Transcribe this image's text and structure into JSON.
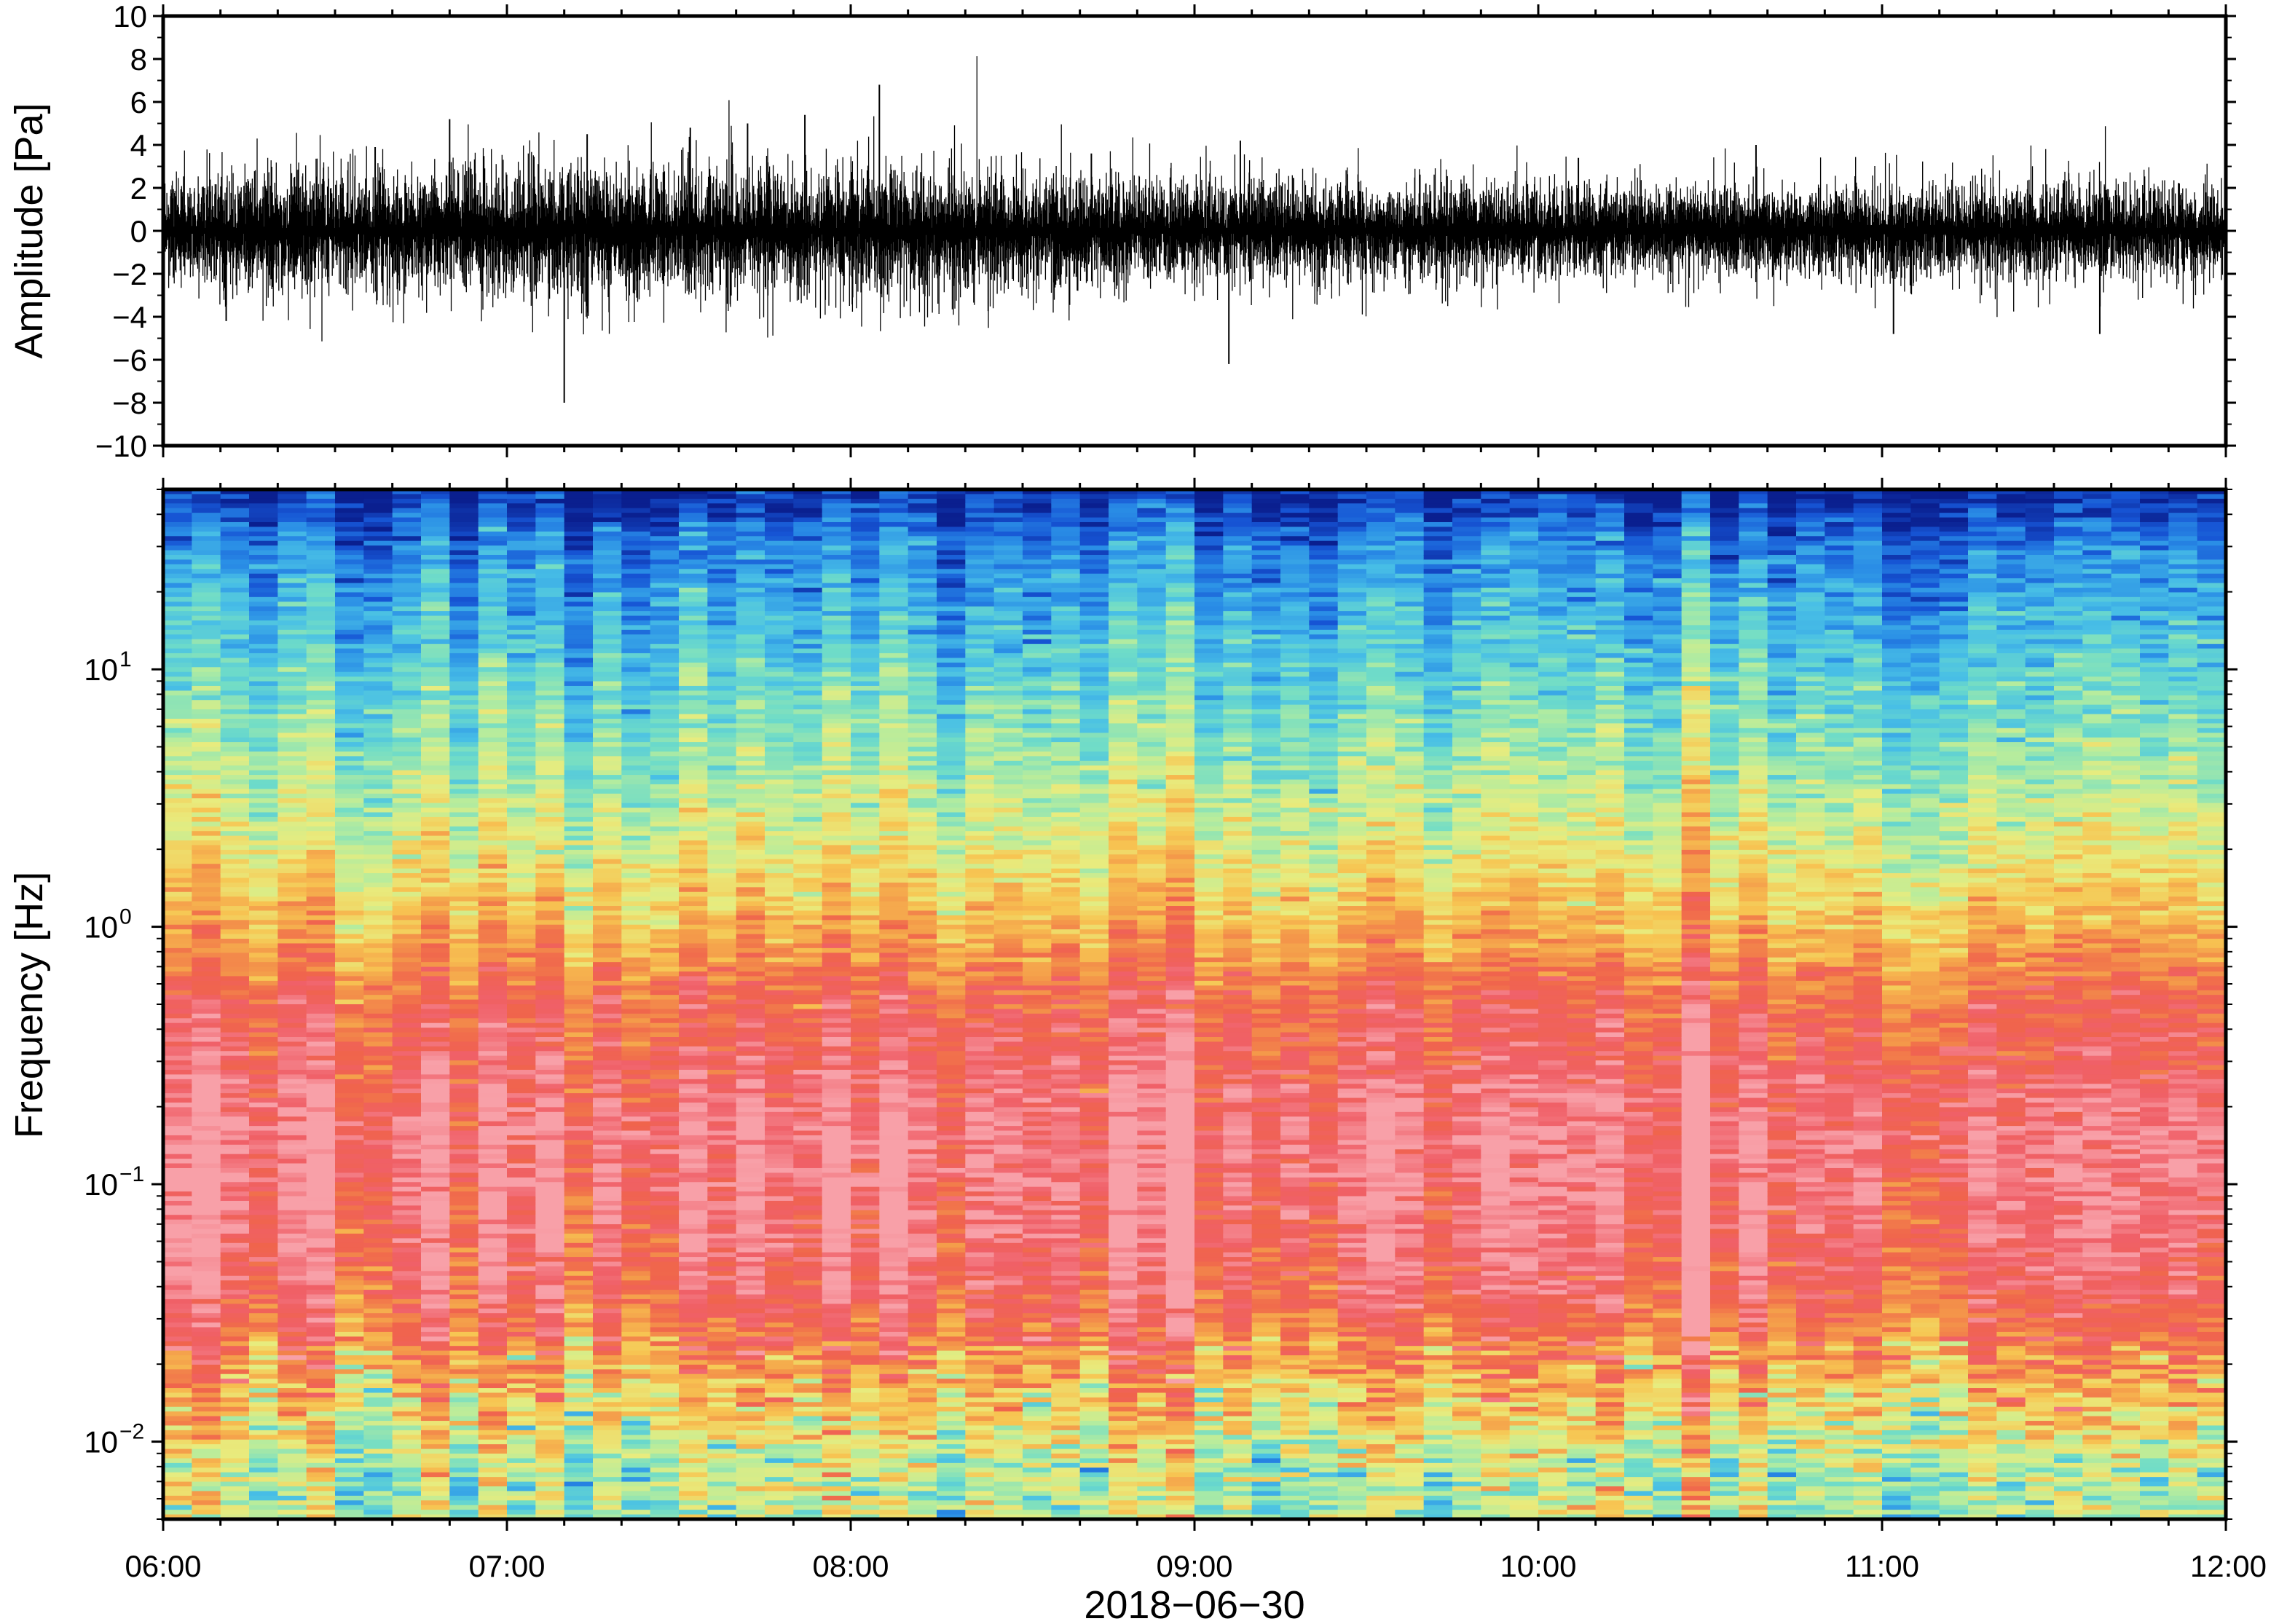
{
  "chart_data": [
    {
      "type": "line",
      "panel": "waveform",
      "title": "",
      "ylabel": "Amplitude [Pa]",
      "ylim": [
        -10,
        10
      ],
      "yticks": [
        10,
        8,
        6,
        4,
        2,
        0,
        -2,
        -4,
        -6,
        -8,
        -10
      ],
      "ytick_labels": [
        "10",
        "8",
        "6",
        "4",
        "2",
        "0",
        "−2",
        "−4",
        "−6",
        "−8",
        "−10"
      ],
      "time_range": [
        "06:00",
        "12:00"
      ],
      "series": [
        {
          "color": "#000000",
          "envelope_hours": [
            6.0,
            6.5,
            7.0,
            7.5,
            8.0,
            8.5,
            9.0,
            9.5,
            10.0,
            10.5,
            11.0,
            11.5,
            12.0
          ],
          "envelope_amplitude_pa": [
            3.0,
            3.2,
            3.3,
            3.4,
            3.3,
            2.9,
            2.7,
            2.5,
            2.4,
            2.3,
            2.3,
            2.6,
            2.2
          ]
        }
      ],
      "notable_peaks": [
        {
          "time": "06:11",
          "value": -4.2
        },
        {
          "time": "06:37",
          "value": 3.9
        },
        {
          "time": "06:50",
          "value": 5.2
        },
        {
          "time": "07:10",
          "value": -8.0
        },
        {
          "time": "07:14",
          "value": 4.5
        },
        {
          "time": "07:32",
          "value": 4.8
        },
        {
          "time": "07:42",
          "value": 5.0
        },
        {
          "time": "07:52",
          "value": 5.4
        },
        {
          "time": "08:05",
          "value": 6.8
        },
        {
          "time": "08:42",
          "value": 3.6
        },
        {
          "time": "09:06",
          "value": -6.2
        },
        {
          "time": "09:08",
          "value": 4.2
        },
        {
          "time": "10:07",
          "value": 3.4
        },
        {
          "time": "10:38",
          "value": 4.0
        },
        {
          "time": "11:02",
          "value": -4.8
        },
        {
          "time": "11:38",
          "value": -4.8
        }
      ],
      "grid": false
    },
    {
      "type": "heatmap",
      "panel": "spectrogram",
      "title": "",
      "ylabel": "Frequency [Hz]",
      "xlabel": "2018−06−30",
      "yscale": "log",
      "ylim": [
        0.005,
        50
      ],
      "yticks": [
        0.01,
        0.1,
        1,
        10
      ],
      "ytick_labels": [
        {
          "base": "10",
          "exp": "−2"
        },
        {
          "base": "10",
          "exp": "−1"
        },
        {
          "base": "10",
          "exp": "0"
        },
        {
          "base": "10",
          "exp": "1"
        }
      ],
      "xticks": [
        "06:00",
        "07:00",
        "08:00",
        "09:00",
        "10:00",
        "11:00",
        "12:00"
      ],
      "colormap": [
        "#0a1f8f",
        "#1654d4",
        "#2a8ee6",
        "#48bfe6",
        "#6fdcc8",
        "#b5ec9e",
        "#e8ec7e",
        "#f7c552",
        "#f49a4a",
        "#f0644c",
        "#f06068",
        "#f8a0a8"
      ],
      "profile": {
        "frequency_hz": [
          50,
          30,
          10,
          5,
          2,
          1,
          0.5,
          0.3,
          0.15,
          0.08,
          0.04,
          0.025,
          0.015,
          0.008
        ],
        "level": [
          0.02,
          0.18,
          0.33,
          0.42,
          0.55,
          0.68,
          0.85,
          0.9,
          0.97,
          0.95,
          0.9,
          0.8,
          0.65,
          0.48
        ]
      },
      "grid": false
    }
  ]
}
